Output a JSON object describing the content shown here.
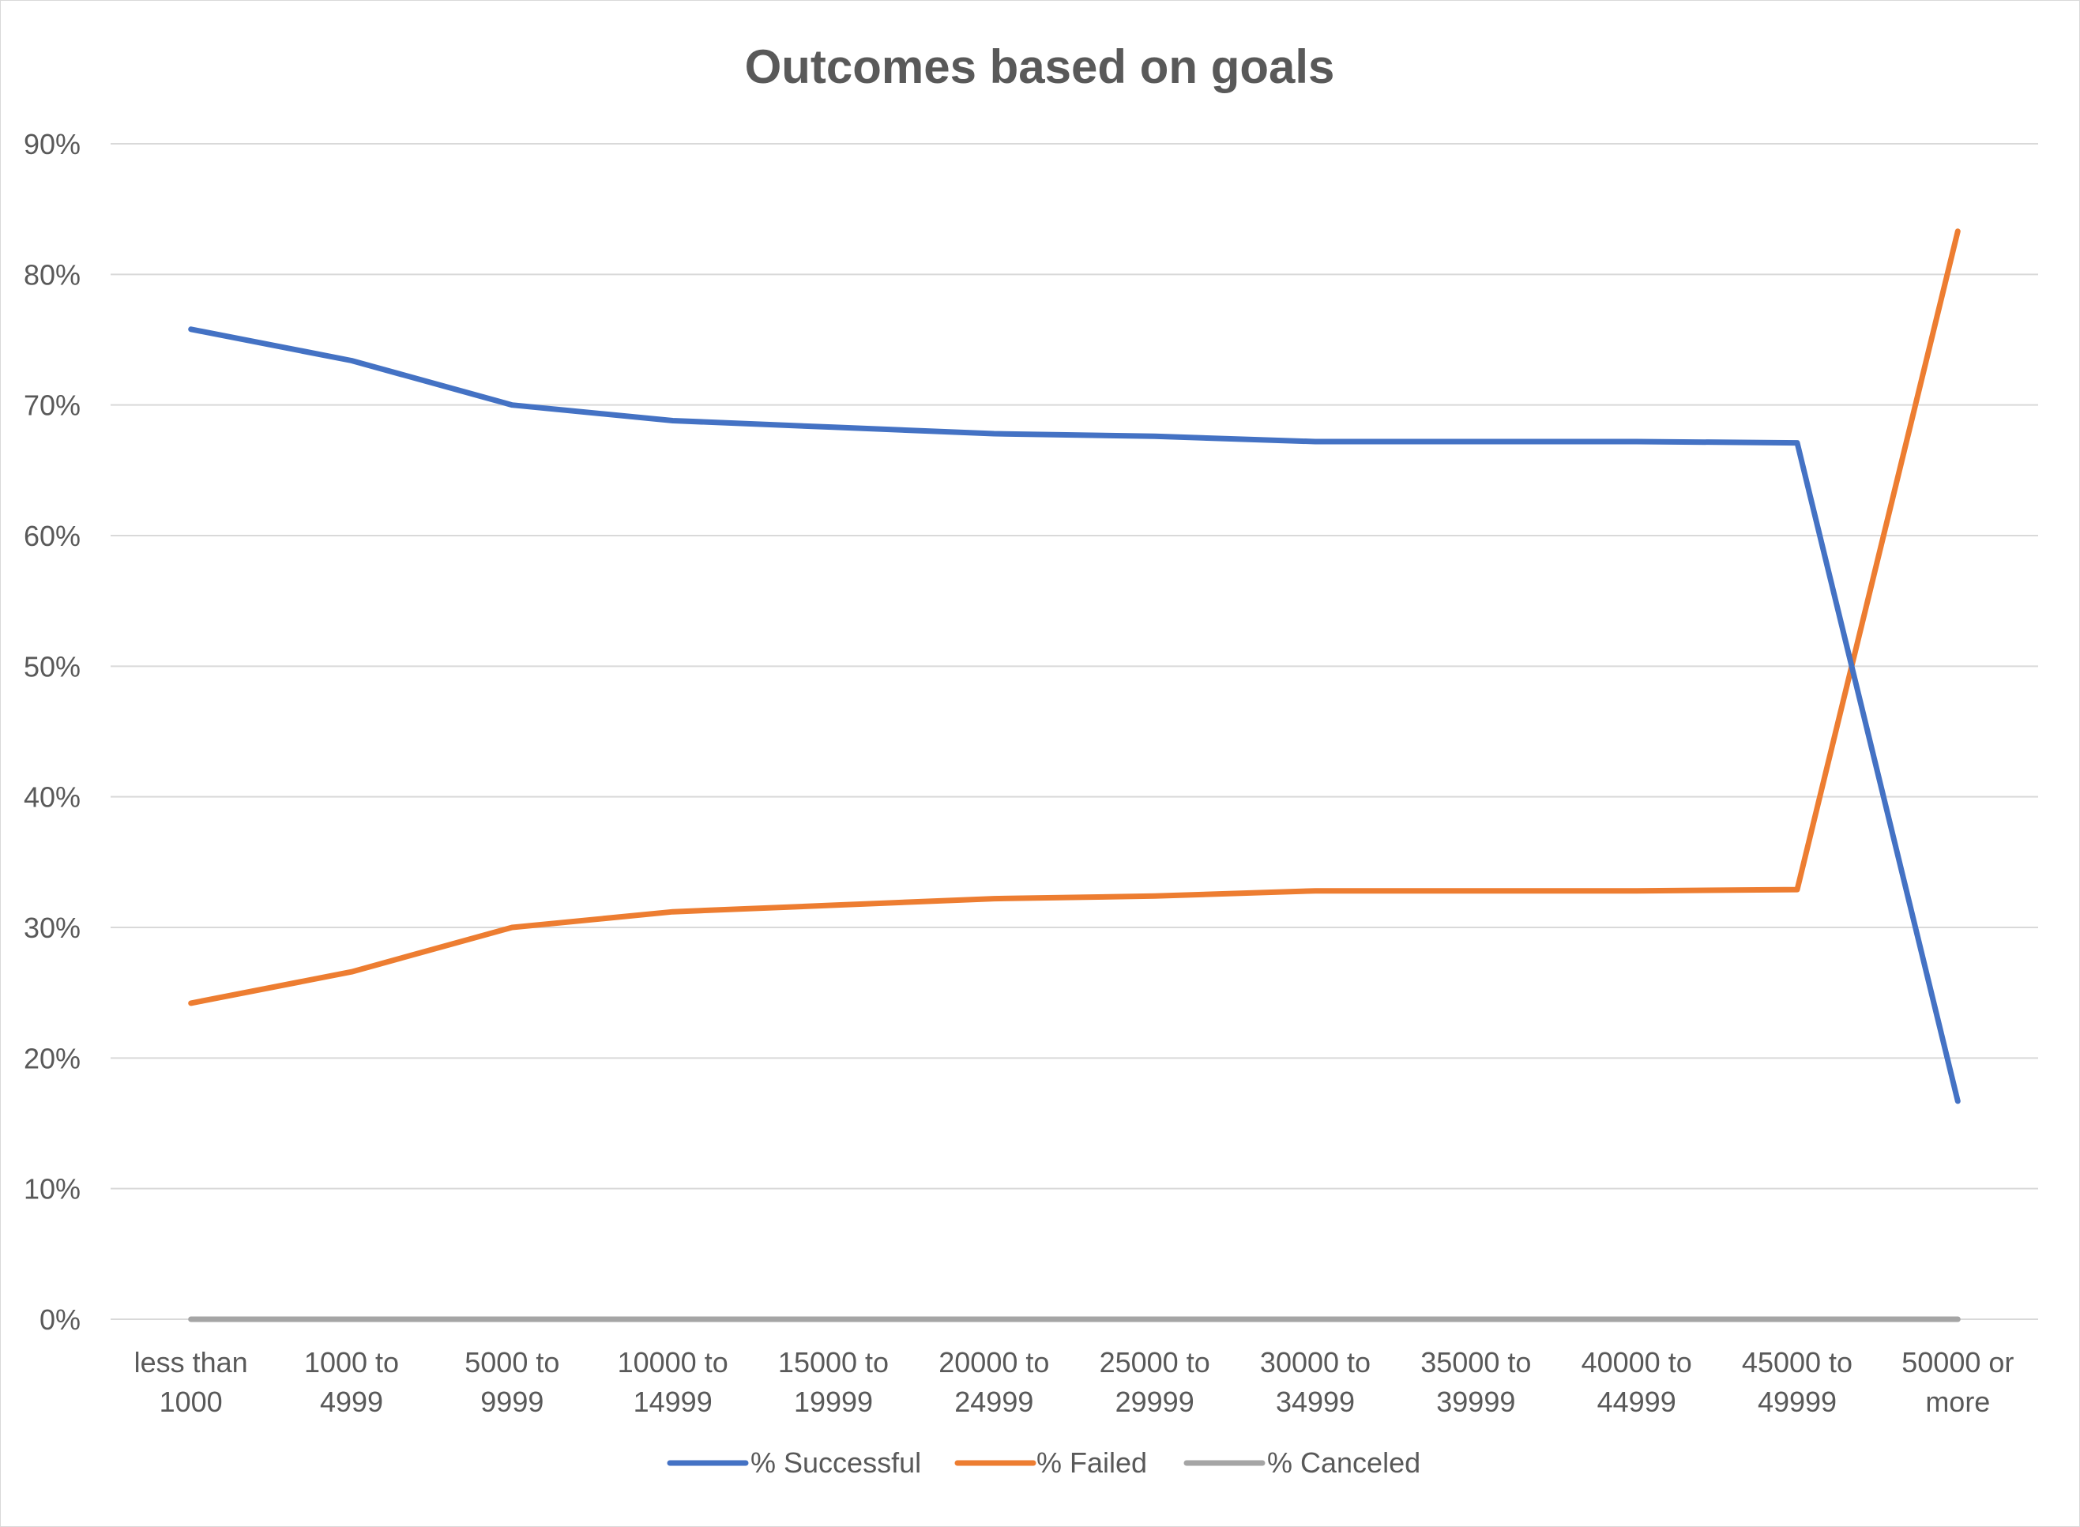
{
  "chart_data": {
    "type": "line",
    "title": "Outcomes based on goals",
    "xlabel": "",
    "ylabel": "",
    "categories": [
      [
        "less than",
        "1000"
      ],
      [
        "1000 to",
        "4999"
      ],
      [
        "5000 to",
        "9999"
      ],
      [
        "10000 to",
        "14999"
      ],
      [
        "15000 to",
        "19999"
      ],
      [
        "20000 to",
        "24999"
      ],
      [
        "25000 to",
        "29999"
      ],
      [
        "30000 to",
        "34999"
      ],
      [
        "35000 to",
        "39999"
      ],
      [
        "40000 to",
        "44999"
      ],
      [
        "45000 to",
        "49999"
      ],
      [
        "50000 or",
        "more"
      ]
    ],
    "ylim": [
      0,
      90
    ],
    "yticks": [
      "0%",
      "10%",
      "20%",
      "30%",
      "40%",
      "50%",
      "60%",
      "70%",
      "80%",
      "90%"
    ],
    "grid": true,
    "legend_position": "bottom",
    "series": [
      {
        "name": "% Successful",
        "color": "#4472c4",
        "values": [
          75.8,
          73.4,
          70.0,
          68.8,
          68.3,
          67.8,
          67.6,
          67.2,
          67.2,
          67.2,
          67.1,
          16.7
        ]
      },
      {
        "name": "% Failed",
        "color": "#ed7d31",
        "values": [
          24.2,
          26.6,
          30.0,
          31.2,
          31.7,
          32.2,
          32.4,
          32.8,
          32.8,
          32.8,
          32.9,
          83.3
        ]
      },
      {
        "name": "% Canceled",
        "color": "#a5a5a5",
        "values": [
          0,
          0,
          0,
          0,
          0,
          0,
          0,
          0,
          0,
          0,
          0,
          0
        ]
      }
    ]
  }
}
